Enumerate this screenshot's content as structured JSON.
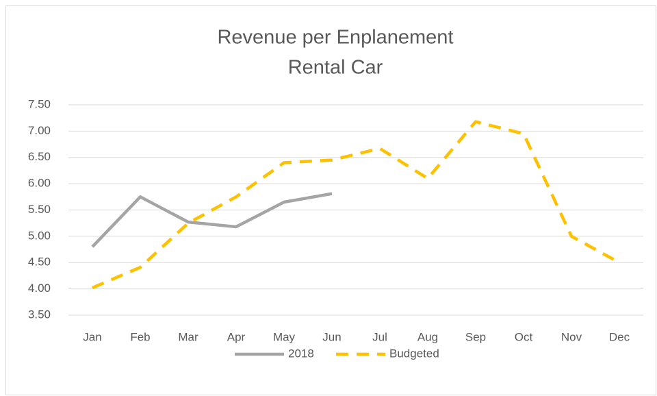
{
  "chart_data": {
    "type": "line",
    "title": [
      "Revenue per Enplanement",
      "Rental Car"
    ],
    "categories": [
      "Jan",
      "Feb",
      "Mar",
      "Apr",
      "May",
      "Jun",
      "Jul",
      "Aug",
      "Sep",
      "Oct",
      "Nov",
      "Dec"
    ],
    "series": [
      {
        "name": "2018",
        "color": "#a5a5a5",
        "dashed": false,
        "values": [
          4.8,
          5.75,
          5.27,
          5.18,
          5.65,
          5.81,
          null,
          null,
          null,
          null,
          null,
          null
        ]
      },
      {
        "name": "Budgeted",
        "color": "#ffc000",
        "dashed": true,
        "values": [
          4.02,
          4.41,
          5.25,
          5.75,
          6.4,
          6.45,
          6.67,
          6.1,
          7.18,
          6.95,
          5.0,
          4.5
        ]
      }
    ],
    "ylim": [
      3.5,
      7.5
    ],
    "yticks": [
      {
        "value": 3.5,
        "label": "3.50"
      },
      {
        "value": 4,
        "label": "4.00"
      },
      {
        "value": 4.5,
        "label": "4.50"
      },
      {
        "value": 5,
        "label": "5.00"
      },
      {
        "value": 5.5,
        "label": "5.50"
      },
      {
        "value": 6,
        "label": "6.00"
      },
      {
        "value": 6.5,
        "label": "6.50"
      },
      {
        "value": 7,
        "label": "7.00"
      },
      {
        "value": 7.5,
        "label": "7.50"
      }
    ],
    "grid": true,
    "legend": "bottom"
  }
}
